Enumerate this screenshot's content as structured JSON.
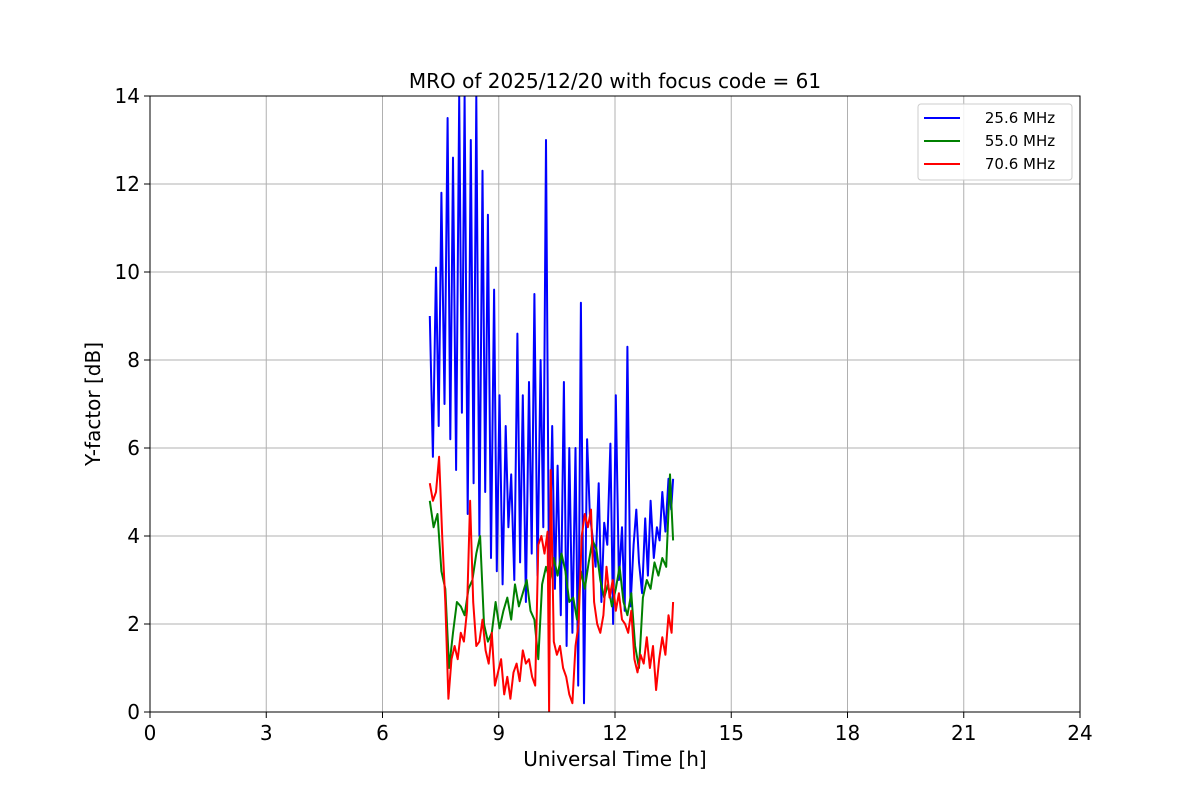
{
  "chart_data": {
    "type": "line",
    "title": "MRO of 2025/12/20 with focus code = 61",
    "xlabel": "Universal Time [h]",
    "ylabel": "Y-factor [dB]",
    "xlim": [
      0,
      24
    ],
    "ylim": [
      0,
      14
    ],
    "xticks": [
      0,
      3,
      6,
      9,
      12,
      15,
      18,
      21,
      24
    ],
    "yticks": [
      0,
      2,
      4,
      6,
      8,
      10,
      12,
      14
    ],
    "grid": true,
    "legend_position": "top-right",
    "series": [
      {
        "name": "25.6 MHz",
        "color": "#0000ff",
        "x": [
          7.22,
          7.3,
          7.38,
          7.45,
          7.52,
          7.6,
          7.68,
          7.75,
          7.82,
          7.9,
          7.98,
          8.05,
          8.12,
          8.2,
          8.28,
          8.35,
          8.42,
          8.5,
          8.58,
          8.65,
          8.72,
          8.8,
          8.88,
          8.95,
          9.02,
          9.1,
          9.18,
          9.25,
          9.32,
          9.4,
          9.48,
          9.55,
          9.62,
          9.7,
          9.78,
          9.85,
          9.92,
          10.0,
          10.08,
          10.15,
          10.22,
          10.3,
          10.38,
          10.45,
          10.52,
          10.6,
          10.68,
          10.75,
          10.82,
          10.9,
          10.98,
          11.05,
          11.12,
          11.2,
          11.28,
          11.35,
          11.42,
          11.5,
          11.58,
          11.65,
          11.72,
          11.8,
          11.88,
          11.95,
          12.02,
          12.1,
          12.18,
          12.25,
          12.32,
          12.4,
          12.48,
          12.55,
          12.62,
          12.7,
          12.78,
          12.85,
          12.92,
          13.0,
          13.08,
          13.15,
          13.22,
          13.3,
          13.38,
          13.45,
          13.5
        ],
        "y": [
          9.0,
          5.8,
          10.1,
          6.5,
          11.8,
          7.0,
          13.5,
          6.2,
          12.6,
          5.5,
          14.0,
          6.8,
          14.0,
          4.5,
          13.0,
          5.2,
          14.0,
          4.0,
          12.3,
          5.0,
          11.3,
          3.5,
          9.6,
          3.2,
          7.2,
          2.9,
          6.5,
          4.2,
          5.4,
          3.0,
          8.6,
          3.4,
          7.2,
          2.5,
          7.5,
          3.6,
          9.5,
          3.1,
          8.0,
          4.2,
          13.0,
          2.6,
          6.5,
          2.8,
          5.6,
          2.2,
          7.5,
          1.5,
          6.0,
          1.8,
          6.0,
          0.6,
          9.3,
          0.2,
          6.2,
          4.5,
          4.0,
          3.3,
          5.2,
          2.5,
          4.3,
          3.8,
          6.1,
          2.0,
          7.2,
          3.0,
          4.2,
          2.3,
          8.3,
          2.4,
          3.8,
          4.6,
          3.4,
          2.7,
          4.4,
          3.1,
          4.8,
          3.5,
          4.2,
          3.9,
          5.0,
          4.1,
          5.3,
          4.6,
          5.3
        ]
      },
      {
        "name": "55.0 MHz",
        "color": "#008000",
        "x": [
          7.22,
          7.32,
          7.42,
          7.52,
          7.62,
          7.72,
          7.82,
          7.92,
          8.02,
          8.12,
          8.22,
          8.32,
          8.42,
          8.52,
          8.62,
          8.72,
          8.82,
          8.92,
          9.02,
          9.12,
          9.22,
          9.32,
          9.42,
          9.52,
          9.62,
          9.72,
          9.82,
          9.92,
          10.02,
          10.12,
          10.22,
          10.32,
          10.42,
          10.52,
          10.62,
          10.72,
          10.82,
          10.92,
          11.02,
          11.12,
          11.22,
          11.32,
          11.42,
          11.52,
          11.62,
          11.72,
          11.82,
          11.92,
          12.02,
          12.12,
          12.22,
          12.32,
          12.42,
          12.52,
          12.62,
          12.72,
          12.82,
          12.92,
          13.02,
          13.12,
          13.22,
          13.32,
          13.42,
          13.5
        ],
        "y": [
          4.8,
          4.2,
          4.5,
          3.2,
          2.8,
          1.0,
          1.8,
          2.5,
          2.4,
          2.2,
          2.8,
          3.0,
          3.6,
          4.0,
          2.0,
          1.6,
          1.8,
          2.5,
          1.9,
          2.3,
          2.6,
          2.1,
          2.9,
          2.4,
          2.7,
          3.0,
          2.3,
          2.1,
          1.2,
          2.9,
          3.3,
          3.0,
          3.5,
          3.1,
          3.6,
          3.2,
          2.5,
          2.6,
          2.1,
          3.2,
          2.8,
          3.4,
          3.9,
          3.7,
          3.0,
          2.6,
          2.9,
          2.4,
          2.8,
          3.3,
          2.5,
          2.2,
          2.7,
          1.5,
          1.0,
          2.6,
          3.0,
          2.8,
          3.4,
          3.1,
          3.5,
          3.3,
          5.4,
          3.9
        ]
      },
      {
        "name": "70.6 MHz",
        "color": "#ff0000",
        "x": [
          7.22,
          7.3,
          7.38,
          7.46,
          7.54,
          7.62,
          7.7,
          7.78,
          7.86,
          7.94,
          8.02,
          8.1,
          8.18,
          8.26,
          8.34,
          8.42,
          8.5,
          8.58,
          8.66,
          8.74,
          8.82,
          8.9,
          8.98,
          9.06,
          9.14,
          9.22,
          9.3,
          9.38,
          9.46,
          9.54,
          9.62,
          9.7,
          9.78,
          9.86,
          9.94,
          10.02,
          10.1,
          10.18,
          10.26,
          10.3,
          10.34,
          10.42,
          10.5,
          10.58,
          10.66,
          10.74,
          10.82,
          10.9,
          10.98,
          11.06,
          11.14,
          11.22,
          11.3,
          11.38,
          11.46,
          11.54,
          11.62,
          11.7,
          11.78,
          11.86,
          11.94,
          12.02,
          12.1,
          12.18,
          12.26,
          12.34,
          12.42,
          12.5,
          12.58,
          12.66,
          12.74,
          12.82,
          12.9,
          12.98,
          13.06,
          13.14,
          13.22,
          13.3,
          13.38,
          13.46,
          13.5
        ],
        "y": [
          5.2,
          4.8,
          5.0,
          5.8,
          4.0,
          2.5,
          0.3,
          1.2,
          1.5,
          1.2,
          1.8,
          1.6,
          2.3,
          4.8,
          2.5,
          1.5,
          1.6,
          2.1,
          1.4,
          1.1,
          1.8,
          0.6,
          0.9,
          1.2,
          0.4,
          0.8,
          0.3,
          0.9,
          1.1,
          0.7,
          1.4,
          1.1,
          1.2,
          0.8,
          0.6,
          3.8,
          4.0,
          3.6,
          4.1,
          0.0,
          5.5,
          1.6,
          1.3,
          1.5,
          1.0,
          0.8,
          0.4,
          0.2,
          1.5,
          2.0,
          4.0,
          4.5,
          4.2,
          4.6,
          2.5,
          2.0,
          1.8,
          2.2,
          3.3,
          2.6,
          3.0,
          2.3,
          2.7,
          2.1,
          2.0,
          1.8,
          2.3,
          1.2,
          0.9,
          1.3,
          1.1,
          1.7,
          1.0,
          1.5,
          0.5,
          1.2,
          1.7,
          1.3,
          2.2,
          1.8,
          2.5
        ]
      }
    ]
  }
}
